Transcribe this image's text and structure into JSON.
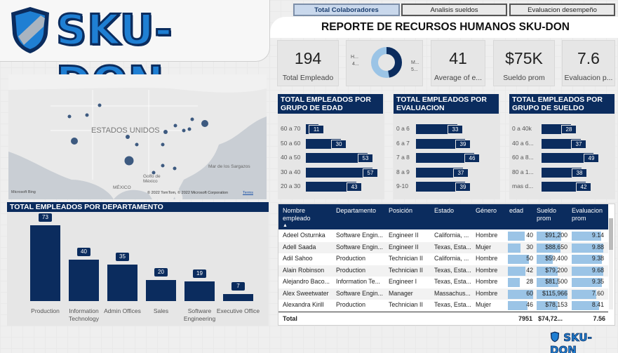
{
  "brand": {
    "name": "SKU-DON",
    "footer_name": "SKU-DON"
  },
  "colors": {
    "navy": "#0b2c5e",
    "brand_blue": "#1f7fd3",
    "bar_light": "#9bc4e6"
  },
  "tabs": [
    {
      "label": "Total Colaboradores",
      "active": true
    },
    {
      "label": "Analisis sueldos",
      "active": false
    },
    {
      "label": "Evaluacion desempeño",
      "active": false
    }
  ],
  "report_title": "REPORTE DE RECURSOS HUMANOS SKU-DON",
  "kpis": {
    "total": {
      "value": "194",
      "label": "Total Empleado"
    },
    "gender_donut": {
      "left_label": "H...",
      "left_sub": "4...",
      "right_label": "M...",
      "right_sub": "5...",
      "share": 0.47
    },
    "age": {
      "value": "41",
      "label": "Average of e..."
    },
    "salary": {
      "value": "$75K",
      "label": "Sueldo prom"
    },
    "eval": {
      "value": "7.6",
      "label": "Evaluacion p..."
    }
  },
  "map": {
    "country_label": "ESTADOS UNIDOS",
    "labels": {
      "mexico": "MÉXICO",
      "gulf": "Golfo de México",
      "sargasso": "Mar de los Sargazos",
      "cuba": "Cuba"
    },
    "attribution": "© 2022 TomTom, © 2022 Microsoft Corporation",
    "terms": "Terms",
    "bing": "Microsoft Bing"
  },
  "age_chart": {
    "title": "TOTAL EMPLEADOS POR GRUPO DE EDAD",
    "chart_data": {
      "type": "bar",
      "categories": [
        "60 a 70",
        "50 a 60",
        "40 a 50",
        "30 a 40",
        "20 a 30"
      ],
      "values": [
        11,
        30,
        53,
        57,
        43
      ]
    }
  },
  "eval_chart": {
    "title": "TOTAL EMPLEADOS POR EVALUACION",
    "chart_data": {
      "type": "bar",
      "categories": [
        "0 a 6",
        "6 a 7",
        "7 a 8",
        "8 a 9",
        "9-10"
      ],
      "values": [
        33,
        39,
        46,
        37,
        39
      ]
    }
  },
  "salary_chart": {
    "title": "TOTAL EMPLEADOS POR GRUPO DE SUELDO",
    "chart_data": {
      "type": "bar",
      "categories": [
        "0 a 40k",
        "40 a 6...",
        "60 a 8...",
        "80 a 1...",
        "mas d..."
      ],
      "values": [
        28,
        37,
        49,
        38,
        42
      ]
    }
  },
  "dept_chart": {
    "title": "TOTAL EMPLEADOS POR DEPARTAMENTO",
    "chart_data": {
      "type": "bar",
      "categories": [
        "Production",
        "Information Technology",
        "Admin Offices",
        "Sales",
        "Software Engineering",
        "Executive Office"
      ],
      "values": [
        73,
        40,
        35,
        20,
        19,
        7
      ]
    }
  },
  "table": {
    "headers": [
      "Nombre empleado",
      "Departamento",
      "Posición",
      "Estado",
      "Género",
      "edad",
      "Sueldo prom",
      "Evaluacion prom"
    ],
    "rows": [
      [
        "Adeel Osturnka",
        "Software Engin...",
        "Engineer II",
        "California, ...",
        "Hombre",
        "40",
        "$91,200",
        "9.14"
      ],
      [
        "Adell Saada",
        "Software Engin...",
        "Engineer II",
        "Texas, Esta...",
        "Mujer",
        "30",
        "$88,650",
        "9.88"
      ],
      [
        "Adil Sahoo",
        "Production",
        "Technician II",
        "California, ...",
        "Hombre",
        "50",
        "$59,400",
        "9.38"
      ],
      [
        "Alain Robinson",
        "Production",
        "Technician II",
        "Texas, Esta...",
        "Hombre",
        "42",
        "$79,200",
        "9.68"
      ],
      [
        "Alejandro Baco...",
        "Information Te...",
        "Engineer I",
        "Texas, Esta...",
        "Hombre",
        "28",
        "$81,500",
        "9.35"
      ],
      [
        "Alex Sweetwater",
        "Software Engin...",
        "Manager",
        "Massachus...",
        "Hombre",
        "60",
        "$115,966",
        "7.60"
      ],
      [
        "Alexandra Kirill",
        "Production",
        "Technician II",
        "Texas, Esta...",
        "Mujer",
        "46",
        "$78,153",
        "8.41"
      ]
    ],
    "total": {
      "label": "Total",
      "edad": "7951",
      "sueldo": "$74,72...",
      "eval": "7.56"
    }
  }
}
